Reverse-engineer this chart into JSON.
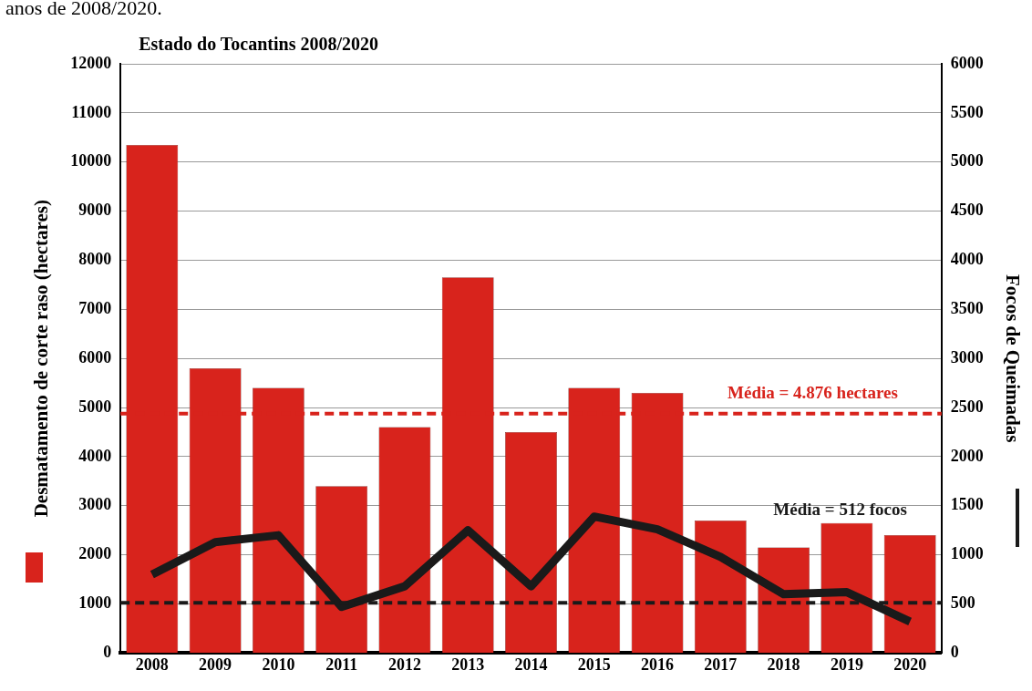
{
  "chart_data": {
    "type": "bar",
    "title": "Estado do Tocantins 2008/2020",
    "ylabel": "Desmatamento de corte raso (hectares)",
    "y2label": "Focos de Queimadas",
    "annotations": [
      "anos de 2008/2020."
    ],
    "categories": [
      "2008",
      "2009",
      "2010",
      "2011",
      "2012",
      "2013",
      "2014",
      "2015",
      "2016",
      "2017",
      "2018",
      "2019",
      "2020"
    ],
    "series": [
      {
        "color": "#d8231c",
        "values": [
          10350,
          5800,
          5400,
          3400,
          4600,
          7650,
          4500,
          5400,
          5300,
          2700,
          2150,
          2650,
          2400
        ]
      },
      {
        "type": "line",
        "axis": "y2",
        "color": "#1a1a1a",
        "values": [
          800,
          1130,
          1200,
          470,
          680,
          1250,
          680,
          1390,
          1260,
          980,
          600,
          620,
          320
        ]
      }
    ],
    "ylim": [
      0,
      12000
    ],
    "yticks": [
      0,
      1000,
      2000,
      3000,
      4000,
      5000,
      6000,
      7000,
      8000,
      9000,
      10000,
      11000,
      12000
    ],
    "y2lim": [
      0,
      6000
    ],
    "y2ticks": [
      0,
      500,
      1000,
      1500,
      2000,
      2500,
      3000,
      3500,
      4000,
      4500,
      5000,
      5500,
      6000
    ],
    "ref_lines": [
      {
        "axis": "y",
        "value": 4876,
        "label": "Média = 4.876 hectares",
        "color": "#d8231c",
        "line_style": "dashed"
      },
      {
        "axis": "y2",
        "value": 512,
        "label": "Média = 512 focos",
        "color": "#1a1a1a",
        "line_style": "dashed"
      }
    ],
    "grid": "y",
    "legend": false,
    "marker": "none",
    "line_style": "solid"
  }
}
